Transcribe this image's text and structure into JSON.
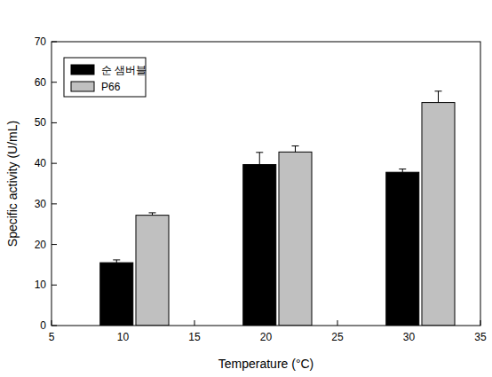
{
  "chart_data": {
    "type": "bar",
    "x_label": "Temperature (°C)",
    "y_label": "Specific activity (U/mL)",
    "x": [
      10,
      20,
      30
    ],
    "series": [
      {
        "name": "순 샘버블",
        "color": "#000000",
        "values": [
          15.5,
          39.7,
          37.8
        ],
        "errors": [
          0.7,
          3.0,
          0.8
        ]
      },
      {
        "name": "P66",
        "color": "#c0c0c0",
        "values": [
          27.2,
          42.8,
          55.0
        ],
        "errors": [
          0.6,
          1.5,
          2.8
        ]
      }
    ],
    "xlim": [
      5,
      35
    ],
    "xticks": [
      5,
      10,
      15,
      20,
      25,
      30,
      35
    ],
    "ylim": [
      0,
      70
    ],
    "yticks": [
      0,
      10,
      20,
      30,
      40,
      50,
      60,
      70
    ],
    "legend": "upper left"
  }
}
